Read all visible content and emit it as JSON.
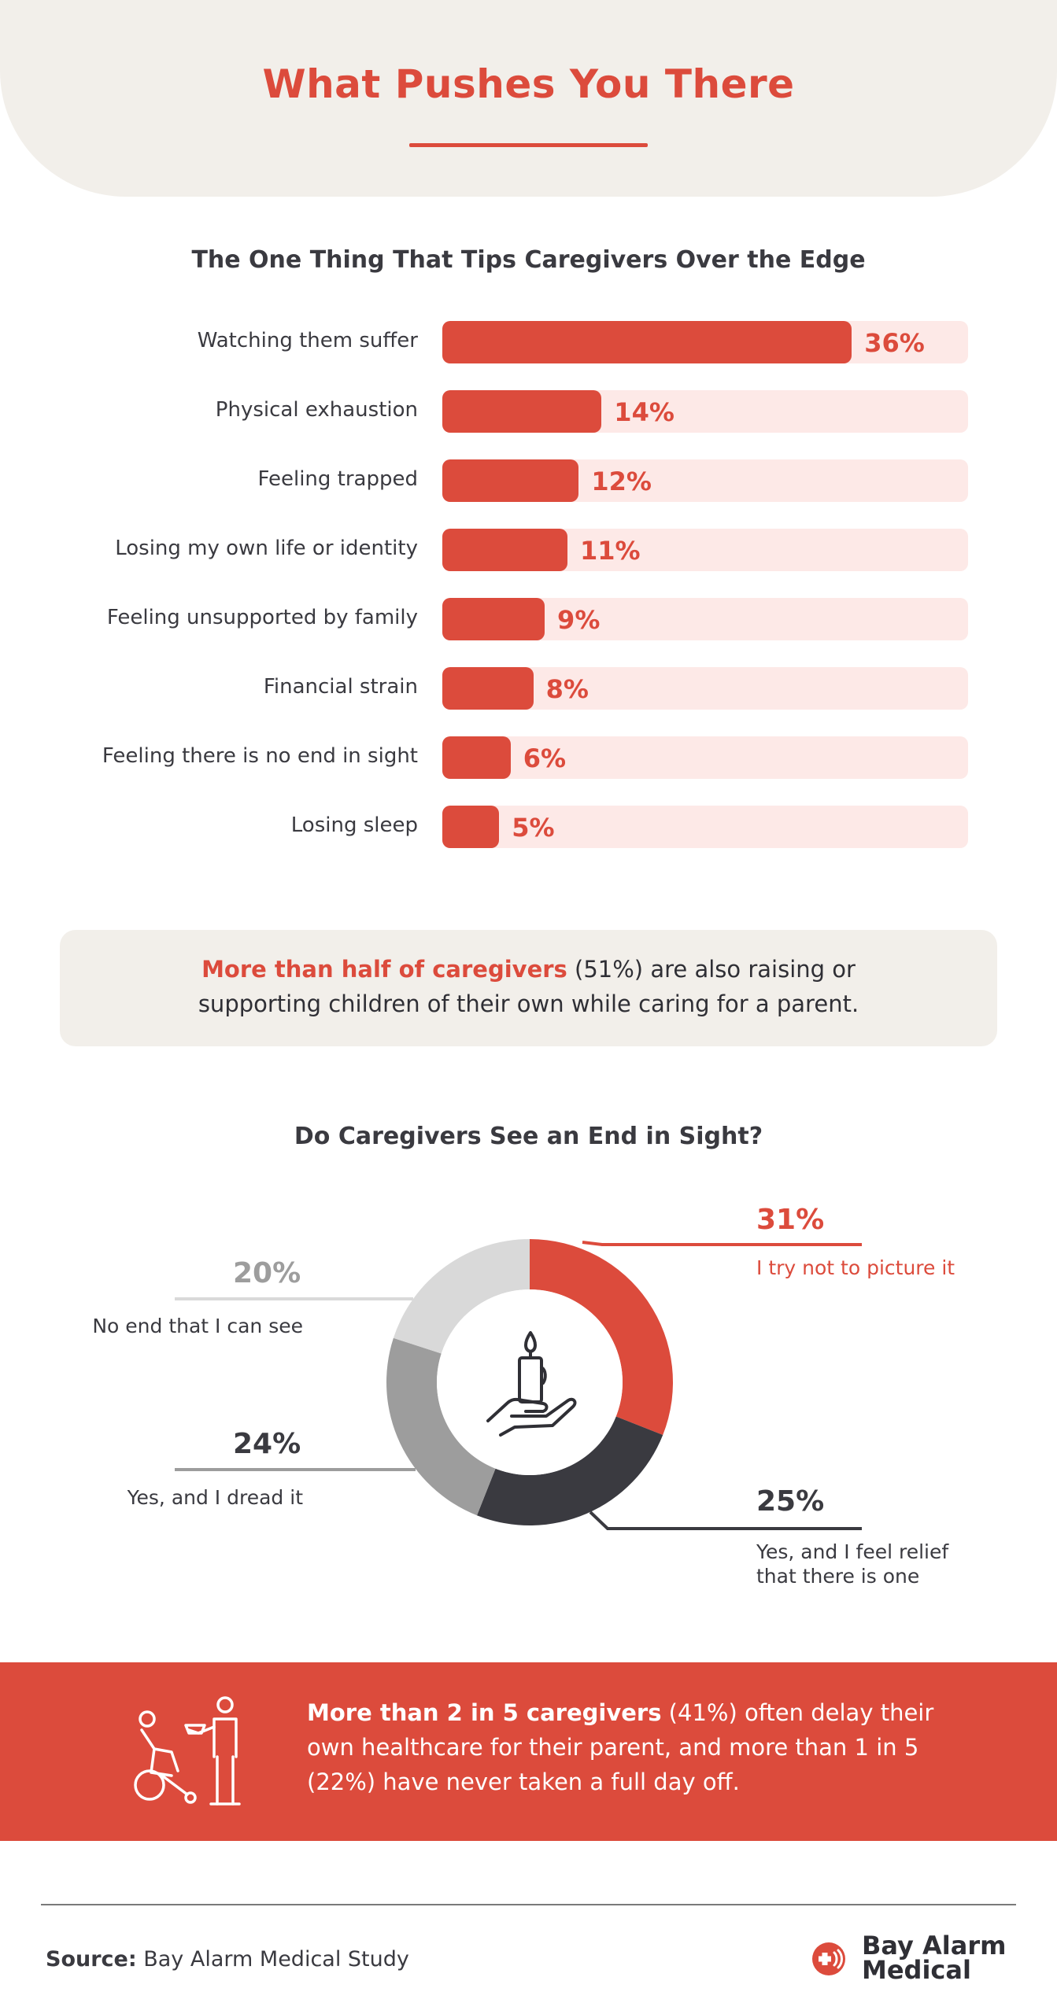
{
  "header": {
    "title": "What Pushes You There"
  },
  "chart_data": [
    {
      "type": "bar",
      "title": "The One Thing That Tips Caregivers Over the Edge",
      "categories": [
        "Watching them suffer",
        "Physical exhaustion",
        "Feeling trapped",
        "Losing my own life or identity",
        "Feeling unsupported by family",
        "Financial strain",
        "Feeling there is no end in sight",
        "Losing sleep"
      ],
      "values": [
        36,
        14,
        12,
        11,
        9,
        8,
        6,
        5
      ],
      "value_labels": [
        "36%",
        "14%",
        "12%",
        "11%",
        "9%",
        "8%",
        "6%",
        "5%"
      ],
      "colors": {
        "fill": "#dc4b3c",
        "track": "#fde9e7"
      }
    },
    {
      "type": "pie",
      "title": "Do Caregivers See an End in Sight?",
      "categories": [
        "I try not to picture it",
        "Yes, and I feel relief that there is one",
        "Yes, and I dread it",
        "No end that I can see"
      ],
      "values": [
        31,
        25,
        24,
        20
      ],
      "value_labels": [
        "31%",
        "25%",
        "24%",
        "20%"
      ],
      "colors": [
        "#dc4b3c",
        "#3a3a40",
        "#9d9d9d",
        "#d9d9d9"
      ]
    }
  ],
  "callout": {
    "highlight": "More than half of caregivers",
    "line1_rest": " (51%) are also raising or",
    "line2": "supporting children of their own while caring for a parent."
  },
  "donut_labels": {
    "s1_label": "I try not to picture it",
    "s2_label_line1": "Yes, and I feel relief",
    "s2_label_line2": "that there is one",
    "s3_label": "Yes, and I dread it",
    "s4_label": "No end that I can see"
  },
  "banner": {
    "highlight": "More than 2 in 5 caregivers",
    "rest": " (41%) often delay their own healthcare for their parent, and more than 1 in 5 (22%) have never taken a full day off."
  },
  "footer": {
    "source_label": "Source:",
    "source_text": " Bay Alarm Medical Study",
    "logo_line1": "Bay Alarm",
    "logo_line2": "Medical"
  },
  "icons": [
    "candle-hand-icon",
    "caregiver-wheelchair-icon",
    "medical-cross-icon"
  ]
}
